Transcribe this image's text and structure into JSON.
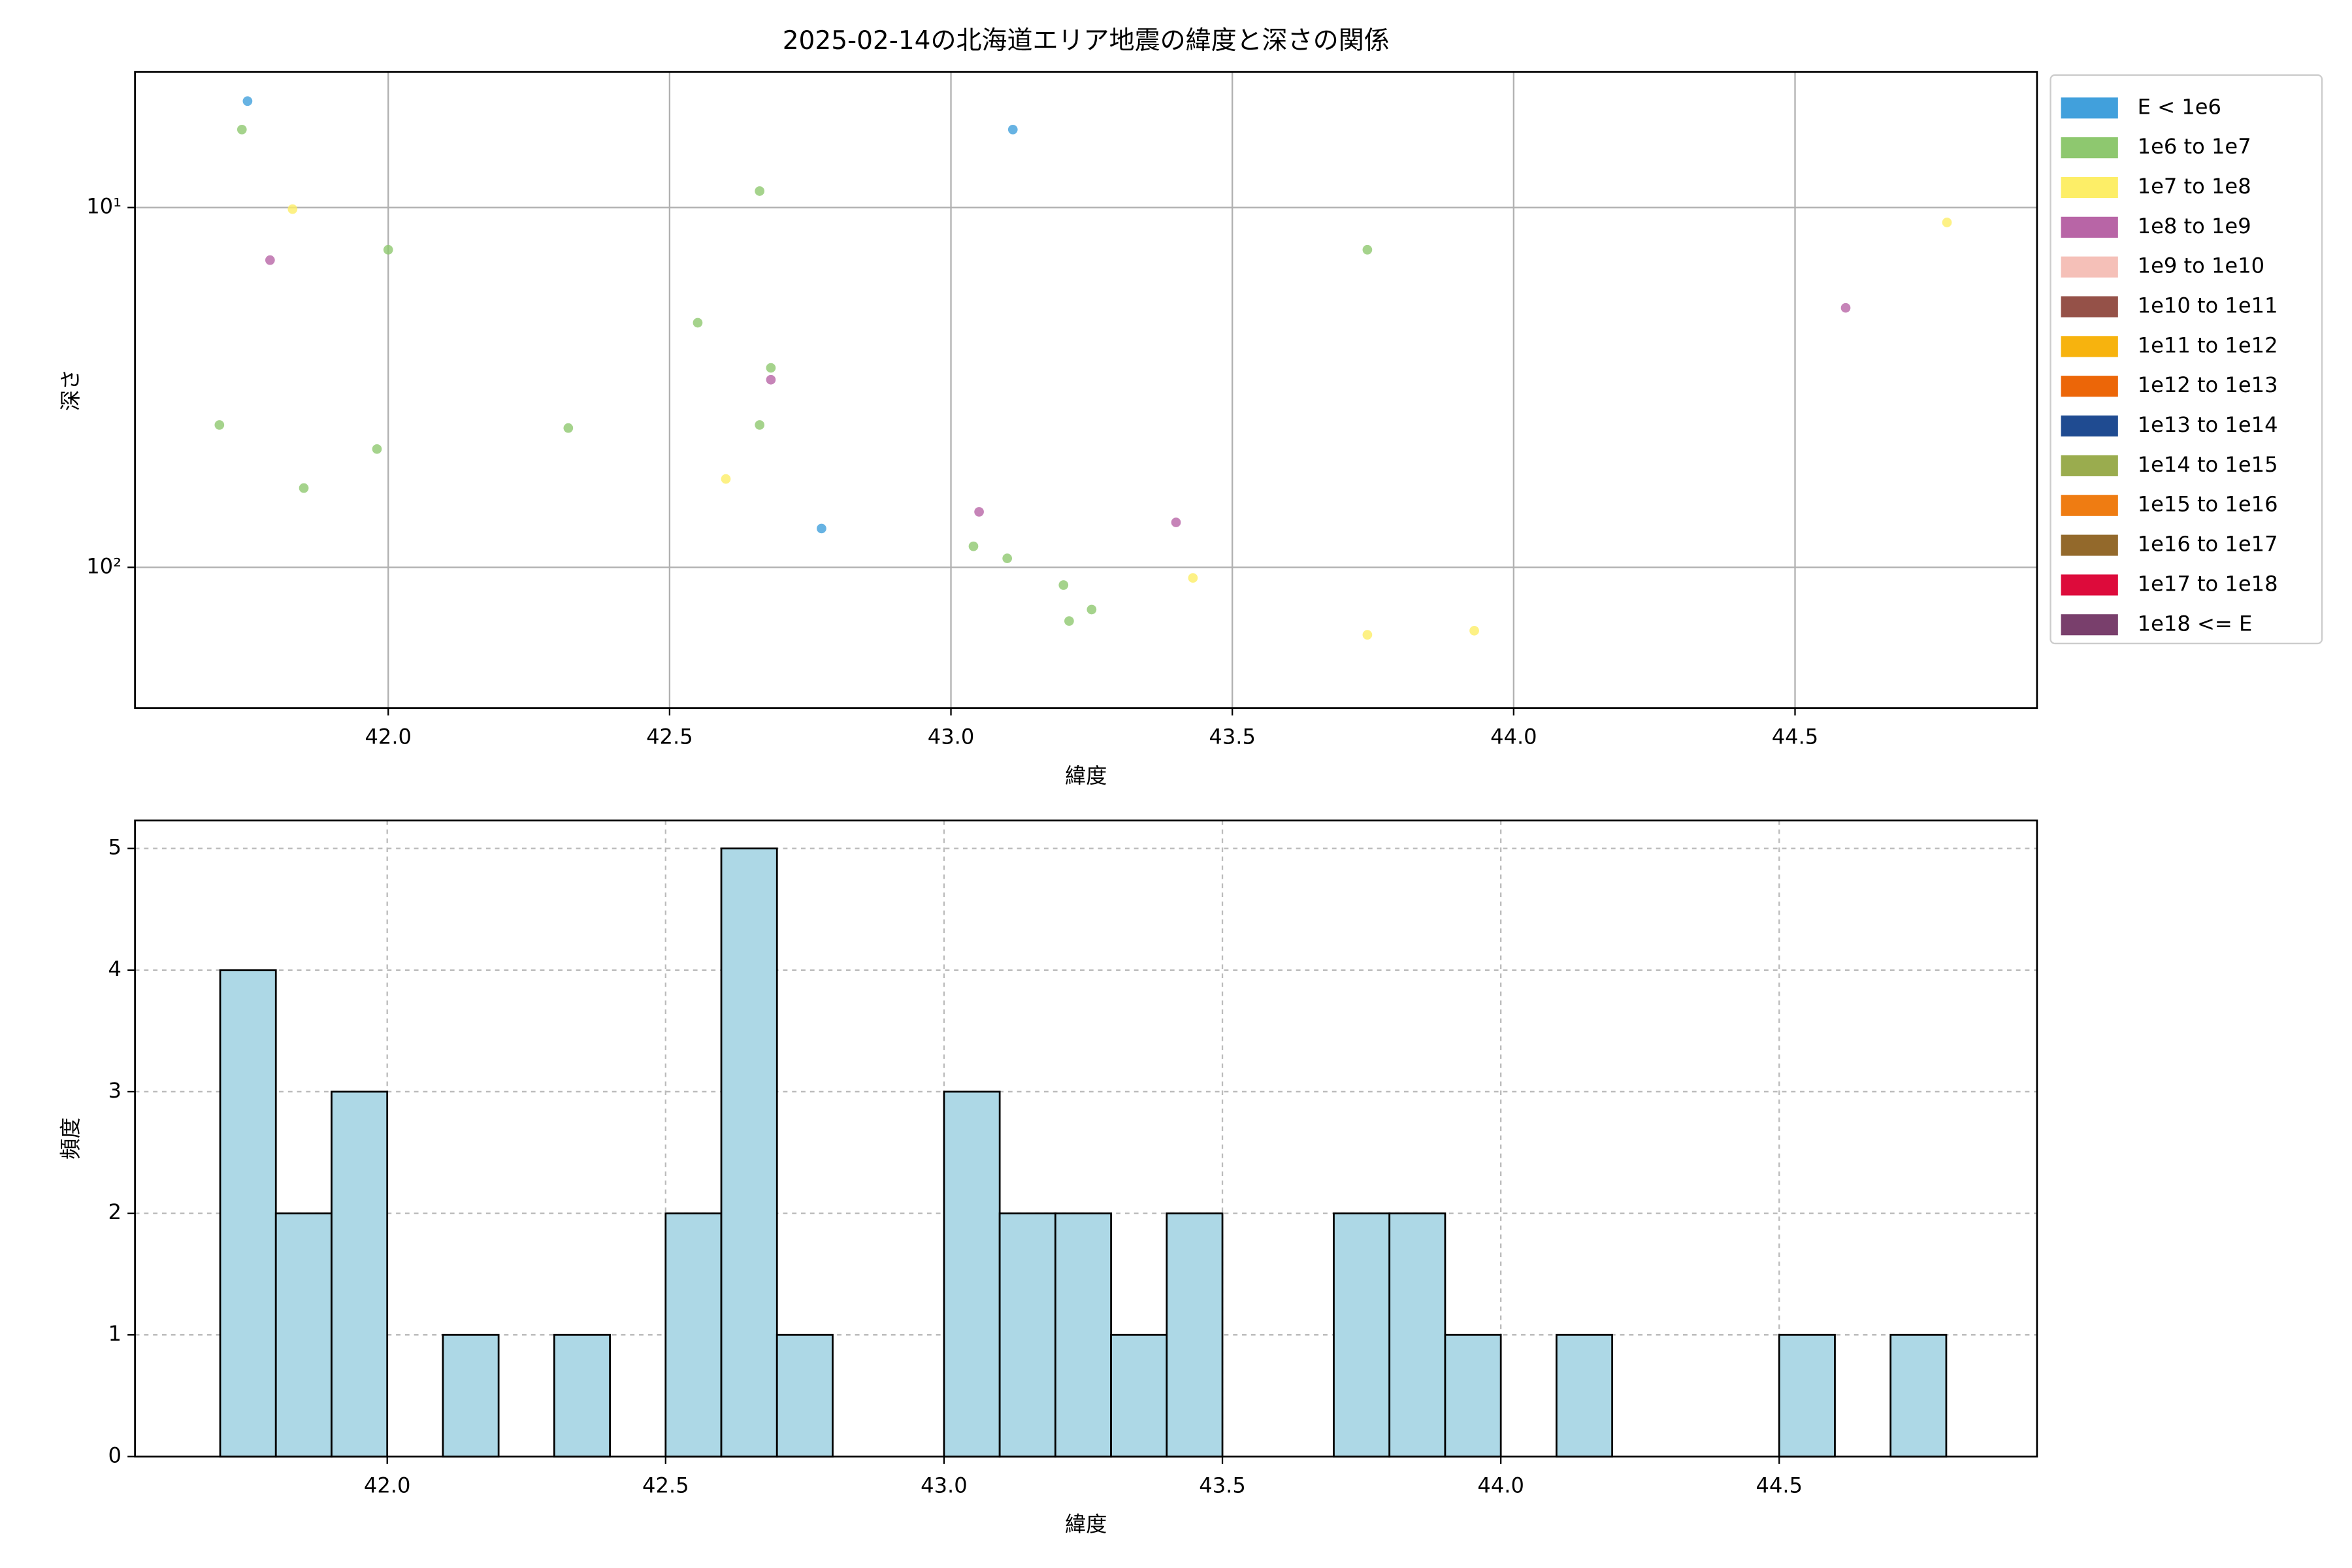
{
  "chart_data": [
    {
      "type": "scatter",
      "title": "2025-02-14の北海道エリア地震の緯度と深さの関係",
      "xlabel": "緯度",
      "ylabel": "深さ",
      "xlim": [
        41.55,
        44.93
      ],
      "ylim": [
        246,
        4.2
      ],
      "yscale": "log",
      "grid": true,
      "grid_linestyle": "solid",
      "legend_loc": "outside upper right",
      "xticks": [
        {
          "value": 42.0,
          "label": "42.0"
        },
        {
          "value": 42.5,
          "label": "42.5"
        },
        {
          "value": 43.0,
          "label": "43.0"
        },
        {
          "value": 43.5,
          "label": "43.5"
        },
        {
          "value": 44.0,
          "label": "44.0"
        },
        {
          "value": 44.5,
          "label": "44.5"
        }
      ],
      "yticks": [
        {
          "value": 10,
          "label": "10¹"
        },
        {
          "value": 100,
          "label": "10²"
        }
      ],
      "series": [
        {
          "name": "E < 1e6",
          "color": "#41a0dc",
          "x": [
            41.75,
            43.11,
            42.77
          ],
          "y": [
            5.06,
            6.07,
            78.0
          ]
        },
        {
          "name": "1e6 to 1e7",
          "color": "#8ec86f",
          "x": [
            41.74,
            42.0,
            41.7,
            41.98,
            41.85,
            42.32,
            42.55,
            42.66,
            42.68,
            42.66,
            43.04,
            43.1,
            43.2,
            43.21,
            43.25,
            43.74
          ],
          "y": [
            6.07,
            13.1,
            40.2,
            46.9,
            60.2,
            41.0,
            20.9,
            9.0,
            27.9,
            40.2,
            87.4,
            94.4,
            112,
            141,
            131,
            13.1
          ]
        },
        {
          "name": "1e7 to 1e8",
          "color": "#fdee67",
          "x": [
            41.83,
            42.6,
            43.43,
            43.74,
            43.93,
            44.77
          ],
          "y": [
            10.1,
            56.8,
            107,
            154,
            150,
            11.0
          ]
        },
        {
          "name": "1e8 to 1e9",
          "color": "#b865a6",
          "x": [
            41.79,
            42.68,
            43.05,
            43.4,
            44.59
          ],
          "y": [
            14.0,
            30.1,
            70.1,
            75.0,
            19.0
          ]
        },
        {
          "name": "1e9 to 1e10",
          "color": "#f5c0b8",
          "x": [],
          "y": []
        },
        {
          "name": "1e10 to 1e11",
          "color": "#955148",
          "x": [],
          "y": []
        },
        {
          "name": "1e11 to 1e12",
          "color": "#f7b30e",
          "x": [],
          "y": []
        },
        {
          "name": "1e12 to 1e13",
          "color": "#ec6608",
          "x": [],
          "y": []
        },
        {
          "name": "1e13 to 1e14",
          "color": "#1f4b91",
          "x": [],
          "y": []
        },
        {
          "name": "1e14 to 1e15",
          "color": "#9aac4e",
          "x": [],
          "y": []
        },
        {
          "name": "1e15 to 1e16",
          "color": "#ef7c12",
          "x": [],
          "y": []
        },
        {
          "name": "1e16 to 1e17",
          "color": "#93692b",
          "x": [],
          "y": []
        },
        {
          "name": "1e17 to 1e18",
          "color": "#dd0b3b",
          "x": [],
          "y": []
        },
        {
          "name": "1e18 <= E",
          "color": "#793f6c",
          "x": [],
          "y": []
        }
      ]
    },
    {
      "type": "histogram",
      "xlabel": "緯度",
      "ylabel": "頻度",
      "color": "#add8e6",
      "edgecolor": "#000000",
      "xlim": [
        41.547,
        44.963
      ],
      "ylim": [
        0,
        5.23
      ],
      "grid": true,
      "grid_linestyle": "dashed",
      "xticks": [
        {
          "value": 42.0,
          "label": "42.0"
        },
        {
          "value": 42.5,
          "label": "42.5"
        },
        {
          "value": 43.0,
          "label": "43.0"
        },
        {
          "value": 43.5,
          "label": "43.5"
        },
        {
          "value": 44.0,
          "label": "44.0"
        },
        {
          "value": 44.5,
          "label": "44.5"
        }
      ],
      "yticks": [
        0,
        1,
        2,
        3,
        4,
        5
      ],
      "bins": [
        41.7,
        41.8,
        41.9,
        42.0,
        42.1,
        42.2,
        42.3,
        42.4,
        42.5,
        42.6,
        42.7,
        42.8,
        42.9,
        43.0,
        43.1,
        43.2,
        43.3,
        43.4,
        43.5,
        43.6,
        43.7,
        43.8,
        43.9,
        44.0,
        44.1,
        44.2,
        44.3,
        44.4,
        44.5,
        44.6,
        44.7,
        44.8
      ],
      "values": [
        4,
        2,
        3,
        0,
        1,
        0,
        1,
        0,
        2,
        5,
        1,
        0,
        0,
        3,
        2,
        2,
        1,
        2,
        0,
        0,
        2,
        2,
        1,
        0,
        1,
        0,
        0,
        0,
        1,
        0,
        1
      ]
    }
  ]
}
